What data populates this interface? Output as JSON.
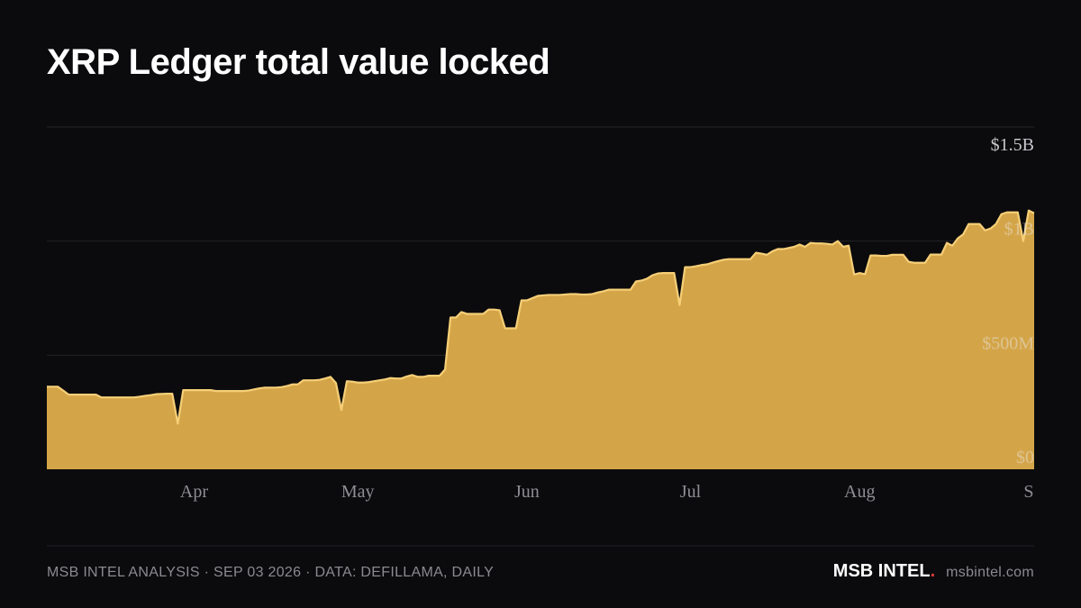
{
  "chart_data": {
    "type": "area",
    "title": "XRP Ledger total value locked",
    "footer": {
      "source": "MSB INTEL ANALYSIS · SEP 03 2026 · DATA: DEFILLAMA, DAILY",
      "brand": "MSB INTEL",
      "brand_mark": ".",
      "site": "msbintel.com"
    },
    "color": "#d4a548",
    "line_color": "#f6cf78",
    "grid": true,
    "ylim": [
      0,
      1500000000
    ],
    "yticks": [
      {
        "value": 0,
        "label": "$0"
      },
      {
        "value": 500000000,
        "label": "$500M"
      },
      {
        "value": 1000000000,
        "label": "$1B"
      },
      {
        "value": 1500000000,
        "label": "$1.5B"
      }
    ],
    "categories": [
      null,
      null,
      null,
      null,
      null,
      null,
      null,
      null,
      null,
      null,
      null,
      null,
      null,
      null,
      null,
      null,
      null,
      null,
      null,
      null,
      null,
      null,
      null,
      null,
      null,
      null,
      null,
      "Apr",
      null,
      null,
      null,
      null,
      null,
      null,
      null,
      null,
      null,
      null,
      null,
      null,
      null,
      null,
      null,
      null,
      null,
      null,
      null,
      null,
      null,
      null,
      null,
      null,
      null,
      null,
      null,
      null,
      null,
      "May",
      null,
      null,
      null,
      null,
      null,
      null,
      null,
      null,
      null,
      null,
      null,
      null,
      null,
      null,
      null,
      null,
      null,
      null,
      null,
      null,
      null,
      null,
      null,
      null,
      null,
      null,
      null,
      null,
      null,
      null,
      "Jun",
      null,
      null,
      null,
      null,
      null,
      null,
      null,
      null,
      null,
      null,
      null,
      null,
      null,
      null,
      null,
      null,
      null,
      null,
      null,
      null,
      null,
      null,
      null,
      null,
      null,
      null,
      null,
      null,
      null,
      "Jul",
      null,
      null,
      null,
      null,
      null,
      null,
      null,
      null,
      null,
      null,
      null,
      null,
      null,
      null,
      null,
      null,
      null,
      null,
      null,
      null,
      null,
      null,
      null,
      null,
      null,
      null,
      null,
      null,
      null,
      null,
      "Aug",
      null,
      null,
      null,
      null,
      null,
      null,
      null,
      null,
      null,
      null,
      null,
      null,
      null,
      null,
      null,
      null,
      null,
      null,
      null,
      null,
      null,
      null,
      null,
      null,
      null,
      null,
      null,
      null,
      null,
      null,
      "S",
      null
    ],
    "values": [
      362000000,
      362000000,
      362000000,
      345000000,
      327000000,
      327000000,
      327000000,
      327000000,
      327000000,
      327000000,
      315000000,
      315000000,
      315000000,
      315000000,
      315000000,
      315000000,
      315000000,
      318000000,
      322000000,
      325000000,
      329000000,
      330000000,
      331000000,
      331000000,
      200000000,
      347000000,
      347000000,
      347000000,
      347000000,
      347000000,
      347000000,
      343000000,
      343000000,
      343000000,
      343000000,
      343000000,
      343000000,
      345000000,
      350000000,
      355000000,
      358000000,
      358000000,
      358000000,
      360000000,
      365000000,
      372000000,
      372000000,
      390000000,
      390000000,
      390000000,
      392000000,
      398000000,
      405000000,
      378000000,
      260000000,
      386000000,
      384000000,
      380000000,
      380000000,
      382000000,
      386000000,
      390000000,
      394000000,
      400000000,
      398000000,
      398000000,
      407000000,
      413000000,
      405000000,
      405000000,
      410000000,
      410000000,
      410000000,
      437000000,
      665000000,
      665000000,
      689000000,
      681000000,
      681000000,
      681000000,
      681000000,
      700000000,
      700000000,
      697000000,
      618000000,
      618000000,
      618000000,
      740000000,
      740000000,
      750000000,
      760000000,
      762000000,
      764000000,
      764000000,
      764000000,
      766000000,
      768000000,
      768000000,
      766000000,
      766000000,
      768000000,
      775000000,
      780000000,
      787000000,
      787000000,
      787000000,
      787000000,
      787000000,
      823000000,
      827000000,
      835000000,
      850000000,
      858000000,
      860000000,
      860000000,
      860000000,
      720000000,
      886000000,
      886000000,
      890000000,
      895000000,
      898000000,
      905000000,
      912000000,
      918000000,
      921000000,
      921000000,
      921000000,
      921000000,
      921000000,
      949000000,
      945000000,
      940000000,
      955000000,
      965000000,
      965000000,
      970000000,
      975000000,
      985000000,
      975000000,
      992000000,
      990000000,
      990000000,
      988000000,
      985000000,
      1000000000,
      975000000,
      980000000,
      854000000,
      860000000,
      855000000,
      937000000,
      937000000,
      935000000,
      935000000,
      940000000,
      940000000,
      940000000,
      909000000,
      905000000,
      905000000,
      905000000,
      941000000,
      941000000,
      941000000,
      992000000,
      980000000,
      1012000000,
      1030000000,
      1075000000,
      1075000000,
      1075000000,
      1047000000,
      1055000000,
      1075000000,
      1118000000,
      1126000000,
      1126000000,
      1126000000,
      1000000000,
      1134000000,
      1122000000
    ]
  }
}
